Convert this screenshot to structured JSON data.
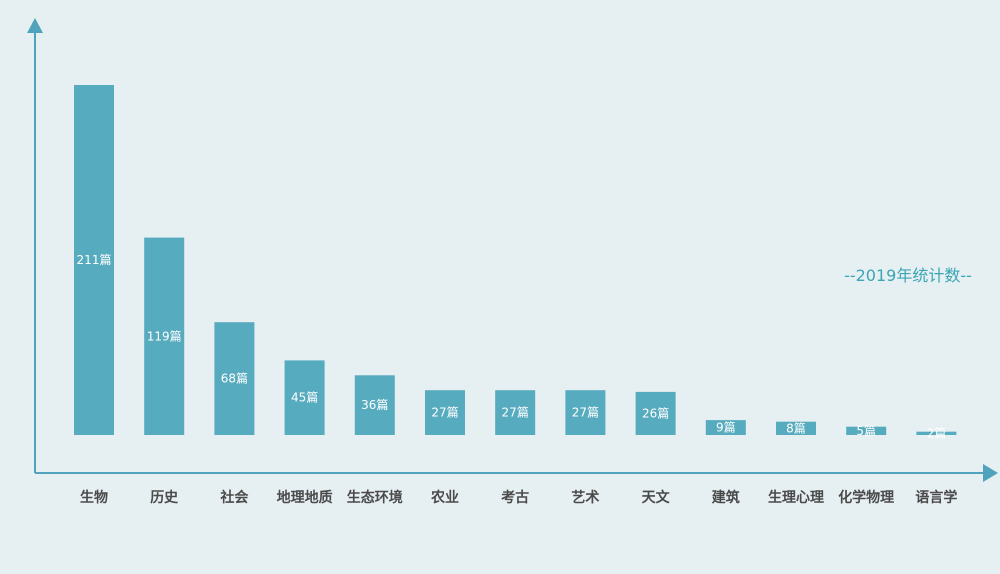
{
  "chart_data": {
    "type": "bar",
    "categories": [
      "生物",
      "历史",
      "社会",
      "地理地质",
      "生态环境",
      "农业",
      "考古",
      "艺术",
      "天文",
      "建筑",
      "生理心理",
      "化学物理",
      "语言学"
    ],
    "values": [
      211,
      119,
      68,
      45,
      36,
      27,
      27,
      27,
      26,
      9,
      8,
      5,
      2
    ],
    "value_labels": [
      "211篇",
      "119篇",
      "68篇",
      "45篇",
      "36篇",
      "27篇",
      "27篇",
      "27篇",
      "26篇",
      "9篇",
      "8篇",
      "5篇",
      "2篇"
    ],
    "annotation": "--2019年统计数--",
    "ylim": [
      0,
      211
    ],
    "grid": false,
    "colors": {
      "bar": "#57abbf",
      "axis": "#4fa3bb",
      "label": "#4a4a4a",
      "annotation": "#3aa6b3"
    }
  }
}
